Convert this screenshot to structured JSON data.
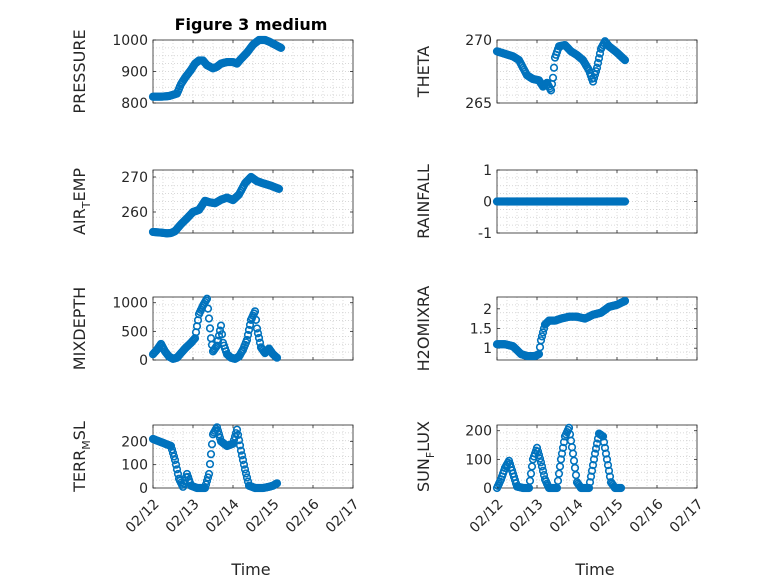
{
  "figure": {
    "title": "Figure 3 medium",
    "xlabel": "Time"
  },
  "colors": {
    "marker": "#0072bd",
    "grid": "#cccccc",
    "axis": "#262626"
  },
  "chart_data": [
    {
      "type": "scatter",
      "id": "pressure",
      "ylabel": "PRESSURE",
      "ylabel_sub": "",
      "ylim": [
        800,
        1000
      ],
      "yticks": [
        800,
        900,
        1000
      ],
      "xlim": [
        0,
        5
      ],
      "xtick_labels": [],
      "grid": true,
      "points": [
        [
          0,
          820
        ],
        [
          0.2,
          820
        ],
        [
          0.4,
          822
        ],
        [
          0.6,
          830
        ],
        [
          0.7,
          860
        ],
        [
          0.8,
          880
        ],
        [
          0.95,
          905
        ],
        [
          1.05,
          925
        ],
        [
          1.15,
          935
        ],
        [
          1.25,
          935
        ],
        [
          1.35,
          920
        ],
        [
          1.5,
          910
        ],
        [
          1.6,
          915
        ],
        [
          1.7,
          925
        ],
        [
          1.85,
          930
        ],
        [
          2.0,
          930
        ],
        [
          2.1,
          925
        ],
        [
          2.2,
          940
        ],
        [
          2.35,
          960
        ],
        [
          2.5,
          985
        ],
        [
          2.65,
          1000
        ],
        [
          2.8,
          1000
        ],
        [
          2.9,
          995
        ],
        [
          3.05,
          985
        ],
        [
          3.2,
          975
        ]
      ]
    },
    {
      "type": "scatter",
      "id": "theta",
      "ylabel": "THETA",
      "ylabel_sub": "",
      "ylim": [
        265,
        270
      ],
      "yticks": [
        265,
        270
      ],
      "xlim": [
        0,
        5
      ],
      "xtick_labels": [],
      "grid": true,
      "points": [
        [
          0,
          269.1
        ],
        [
          0.2,
          268.9
        ],
        [
          0.4,
          268.7
        ],
        [
          0.55,
          268.4
        ],
        [
          0.65,
          267.8
        ],
        [
          0.75,
          267.2
        ],
        [
          0.9,
          266.9
        ],
        [
          1.05,
          266.8
        ],
        [
          1.15,
          266.3
        ],
        [
          1.25,
          266.6
        ],
        [
          1.35,
          266.0
        ],
        [
          1.4,
          267.0
        ],
        [
          1.45,
          268.6
        ],
        [
          1.55,
          269.5
        ],
        [
          1.7,
          269.6
        ],
        [
          1.85,
          269.1
        ],
        [
          2.0,
          268.8
        ],
        [
          2.15,
          268.4
        ],
        [
          2.3,
          267.6
        ],
        [
          2.4,
          266.7
        ],
        [
          2.5,
          267.8
        ],
        [
          2.6,
          269.3
        ],
        [
          2.7,
          269.9
        ],
        [
          2.8,
          269.5
        ],
        [
          3.0,
          269.0
        ],
        [
          3.2,
          268.4
        ]
      ]
    },
    {
      "type": "scatter",
      "id": "air-temp",
      "ylabel": "AIR",
      "ylabel_sub": "T",
      "ylabel_suffix": "EMP",
      "ylim": [
        254,
        272
      ],
      "yticks": [
        260,
        270
      ],
      "xlim": [
        0,
        5
      ],
      "xtick_labels": [],
      "grid": true,
      "points": [
        [
          0,
          254.3
        ],
        [
          0.2,
          254.1
        ],
        [
          0.35,
          253.9
        ],
        [
          0.45,
          254.0
        ],
        [
          0.55,
          254.5
        ],
        [
          0.7,
          256.5
        ],
        [
          0.85,
          258.2
        ],
        [
          1.0,
          260.0
        ],
        [
          1.15,
          260.6
        ],
        [
          1.3,
          263.2
        ],
        [
          1.4,
          262.8
        ],
        [
          1.55,
          262.5
        ],
        [
          1.7,
          263.5
        ],
        [
          1.85,
          264.1
        ],
        [
          2.0,
          263.4
        ],
        [
          2.15,
          265.0
        ],
        [
          2.3,
          268.2
        ],
        [
          2.45,
          270.0
        ],
        [
          2.6,
          268.8
        ],
        [
          2.75,
          268.2
        ],
        [
          2.95,
          267.5
        ],
        [
          3.15,
          266.6
        ]
      ]
    },
    {
      "type": "scatter",
      "id": "rainfall",
      "ylabel": "RAINFALL",
      "ylabel_sub": "",
      "ylim": [
        -1,
        1
      ],
      "yticks": [
        -1,
        0,
        1
      ],
      "xlim": [
        0,
        5
      ],
      "xtick_labels": [],
      "grid": true,
      "points": [
        [
          0,
          0
        ],
        [
          0.2,
          0
        ],
        [
          0.4,
          0
        ],
        [
          0.6,
          0
        ],
        [
          0.8,
          0
        ],
        [
          1.0,
          0
        ],
        [
          1.2,
          0
        ],
        [
          1.4,
          0
        ],
        [
          1.6,
          0
        ],
        [
          1.8,
          0
        ],
        [
          2.0,
          0
        ],
        [
          2.2,
          0
        ],
        [
          2.4,
          0
        ],
        [
          2.6,
          0
        ],
        [
          2.8,
          0
        ],
        [
          3.0,
          0
        ],
        [
          3.2,
          0
        ]
      ]
    },
    {
      "type": "scatter",
      "id": "mixdepth",
      "ylabel": "MIXDEPTH",
      "ylabel_sub": "",
      "ylim": [
        0,
        1100
      ],
      "yticks": [
        0,
        500,
        1000
      ],
      "xlim": [
        0,
        5
      ],
      "xtick_labels": [],
      "grid": true,
      "points": [
        [
          0,
          100
        ],
        [
          0.1,
          180
        ],
        [
          0.2,
          280
        ],
        [
          0.3,
          150
        ],
        [
          0.4,
          60
        ],
        [
          0.5,
          20
        ],
        [
          0.6,
          40
        ],
        [
          0.7,
          120
        ],
        [
          0.8,
          200
        ],
        [
          0.95,
          300
        ],
        [
          1.05,
          380
        ],
        [
          1.15,
          800
        ],
        [
          1.25,
          950
        ],
        [
          1.35,
          1070
        ],
        [
          1.45,
          380
        ],
        [
          1.5,
          150
        ],
        [
          1.6,
          250
        ],
        [
          1.7,
          600
        ],
        [
          1.75,
          300
        ],
        [
          1.85,
          100
        ],
        [
          1.95,
          40
        ],
        [
          2.05,
          20
        ],
        [
          2.15,
          60
        ],
        [
          2.25,
          180
        ],
        [
          2.35,
          350
        ],
        [
          2.45,
          700
        ],
        [
          2.55,
          850
        ],
        [
          2.6,
          550
        ],
        [
          2.7,
          220
        ],
        [
          2.8,
          120
        ],
        [
          2.9,
          200
        ],
        [
          3.0,
          100
        ],
        [
          3.1,
          40
        ]
      ]
    },
    {
      "type": "scatter",
      "id": "h2omixra",
      "ylabel": "H2OMIXRA",
      "ylabel_sub": "",
      "ylim": [
        0.7,
        2.3
      ],
      "yticks": [
        1,
        1.5,
        2
      ],
      "xlim": [
        0,
        5
      ],
      "xtick_labels": [],
      "grid": true,
      "points": [
        [
          0,
          1.1
        ],
        [
          0.2,
          1.1
        ],
        [
          0.4,
          1.05
        ],
        [
          0.5,
          0.95
        ],
        [
          0.6,
          0.85
        ],
        [
          0.75,
          0.8
        ],
        [
          0.95,
          0.8
        ],
        [
          1.05,
          0.85
        ],
        [
          1.1,
          1.2
        ],
        [
          1.2,
          1.6
        ],
        [
          1.3,
          1.7
        ],
        [
          1.45,
          1.7
        ],
        [
          1.6,
          1.75
        ],
        [
          1.8,
          1.8
        ],
        [
          2.0,
          1.8
        ],
        [
          2.2,
          1.75
        ],
        [
          2.4,
          1.85
        ],
        [
          2.6,
          1.9
        ],
        [
          2.8,
          2.05
        ],
        [
          3.0,
          2.1
        ],
        [
          3.2,
          2.2
        ]
      ]
    },
    {
      "type": "scatter",
      "id": "terr-msl",
      "ylabel": "TERR",
      "ylabel_sub": "M",
      "ylabel_suffix": "SL",
      "ylim": [
        0,
        270
      ],
      "yticks": [
        0,
        100,
        200
      ],
      "xlim": [
        0,
        5
      ],
      "xtick_labels": [
        "02/12",
        "02/13",
        "02/14",
        "02/15",
        "02/16",
        "02/17"
      ],
      "grid": true,
      "points": [
        [
          0,
          210
        ],
        [
          0.15,
          200
        ],
        [
          0.3,
          190
        ],
        [
          0.45,
          180
        ],
        [
          0.55,
          120
        ],
        [
          0.65,
          40
        ],
        [
          0.75,
          5
        ],
        [
          0.85,
          60
        ],
        [
          0.95,
          10
        ],
        [
          1.1,
          0
        ],
        [
          1.3,
          0
        ],
        [
          1.4,
          60
        ],
        [
          1.5,
          230
        ],
        [
          1.6,
          260
        ],
        [
          1.7,
          200
        ],
        [
          1.85,
          180
        ],
        [
          2.0,
          190
        ],
        [
          2.1,
          250
        ],
        [
          2.2,
          160
        ],
        [
          2.3,
          80
        ],
        [
          2.4,
          10
        ],
        [
          2.55,
          0
        ],
        [
          2.75,
          0
        ],
        [
          2.9,
          5
        ],
        [
          3.0,
          10
        ],
        [
          3.1,
          20
        ]
      ]
    },
    {
      "type": "scatter",
      "id": "sun-flux",
      "ylabel": "SUN",
      "ylabel_sub": "F",
      "ylabel_suffix": "LUX",
      "ylim": [
        0,
        220
      ],
      "yticks": [
        0,
        100,
        200
      ],
      "xlim": [
        0,
        5
      ],
      "xtick_labels": [
        "02/12",
        "02/13",
        "02/14",
        "02/15",
        "02/16",
        "02/17"
      ],
      "grid": true,
      "points": [
        [
          0,
          0
        ],
        [
          0.1,
          30
        ],
        [
          0.2,
          70
        ],
        [
          0.3,
          95
        ],
        [
          0.4,
          50
        ],
        [
          0.5,
          5
        ],
        [
          0.65,
          0
        ],
        [
          0.8,
          0
        ],
        [
          0.9,
          100
        ],
        [
          1.0,
          140
        ],
        [
          1.1,
          90
        ],
        [
          1.2,
          30
        ],
        [
          1.3,
          0
        ],
        [
          1.5,
          0
        ],
        [
          1.6,
          100
        ],
        [
          1.7,
          180
        ],
        [
          1.8,
          210
        ],
        [
          1.9,
          120
        ],
        [
          2.0,
          20
        ],
        [
          2.1,
          0
        ],
        [
          2.3,
          0
        ],
        [
          2.45,
          120
        ],
        [
          2.55,
          190
        ],
        [
          2.65,
          180
        ],
        [
          2.75,
          100
        ],
        [
          2.85,
          20
        ],
        [
          2.95,
          0
        ],
        [
          3.1,
          0
        ]
      ]
    }
  ]
}
